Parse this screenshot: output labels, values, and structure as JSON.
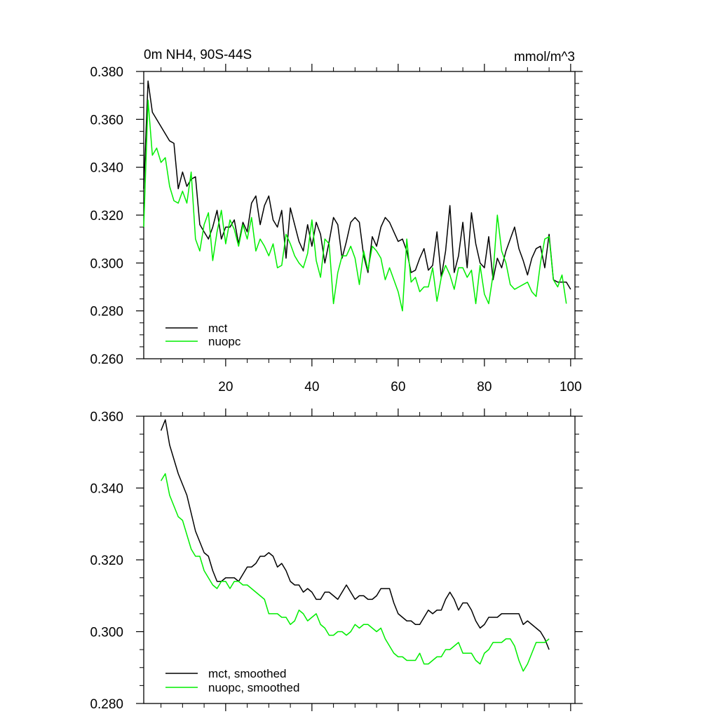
{
  "chart_data": [
    {
      "type": "line",
      "title": "0m NH4, 90S-44S",
      "units_label": "mmol/m^3",
      "xlim": [
        1,
        101
      ],
      "ylim": [
        0.26,
        0.38
      ],
      "xticks": [
        20,
        40,
        60,
        80,
        100
      ],
      "yticks": [
        0.26,
        0.28,
        0.3,
        0.32,
        0.34,
        0.36,
        0.38
      ],
      "yticks_labels": [
        "0.260",
        "0.280",
        "0.300",
        "0.320",
        "0.340",
        "0.360",
        "0.380"
      ],
      "xticks_labels": [
        "20",
        "40",
        "60",
        "80",
        "100"
      ],
      "grid": false,
      "legend": "bottom-left",
      "series": [
        {
          "name": "mct",
          "color": "#000000",
          "x_start": 1,
          "values": [
            0.331,
            0.376,
            0.363,
            0.36,
            0.357,
            0.354,
            0.351,
            0.35,
            0.331,
            0.338,
            0.332,
            0.335,
            0.336,
            0.316,
            0.313,
            0.31,
            0.315,
            0.322,
            0.31,
            0.315,
            0.315,
            0.318,
            0.308,
            0.317,
            0.313,
            0.325,
            0.328,
            0.316,
            0.324,
            0.328,
            0.318,
            0.315,
            0.322,
            0.302,
            0.323,
            0.316,
            0.309,
            0.305,
            0.316,
            0.307,
            0.317,
            0.312,
            0.3,
            0.309,
            0.319,
            0.316,
            0.302,
            0.309,
            0.317,
            0.319,
            0.317,
            0.303,
            0.296,
            0.311,
            0.307,
            0.315,
            0.319,
            0.317,
            0.313,
            0.309,
            0.31,
            0.305,
            0.296,
            0.297,
            0.302,
            0.306,
            0.297,
            0.299,
            0.313,
            0.294,
            0.305,
            0.324,
            0.296,
            0.303,
            0.317,
            0.298,
            0.321,
            0.308,
            0.3,
            0.298,
            0.311,
            0.293,
            0.302,
            0.298,
            0.305,
            0.31,
            0.315,
            0.306,
            0.301,
            0.295,
            0.302,
            0.306,
            0.307,
            0.298,
            0.312,
            0.293,
            0.292,
            0.292,
            0.292,
            0.289
          ]
        },
        {
          "name": "nuopc",
          "color": "#00ee00",
          "x_start": 1,
          "values": [
            0.315,
            0.368,
            0.345,
            0.348,
            0.342,
            0.344,
            0.332,
            0.326,
            0.325,
            0.33,
            0.325,
            0.338,
            0.31,
            0.305,
            0.316,
            0.321,
            0.301,
            0.313,
            0.322,
            0.308,
            0.318,
            0.314,
            0.307,
            0.316,
            0.31,
            0.319,
            0.305,
            0.31,
            0.307,
            0.303,
            0.308,
            0.298,
            0.299,
            0.312,
            0.308,
            0.303,
            0.3,
            0.298,
            0.304,
            0.318,
            0.301,
            0.294,
            0.31,
            0.308,
            0.283,
            0.296,
            0.303,
            0.303,
            0.307,
            0.302,
            0.291,
            0.305,
            0.297,
            0.307,
            0.305,
            0.302,
            0.293,
            0.298,
            0.293,
            0.288,
            0.28,
            0.31,
            0.292,
            0.294,
            0.288,
            0.29,
            0.29,
            0.298,
            0.284,
            0.294,
            0.299,
            0.295,
            0.289,
            0.298,
            0.298,
            0.294,
            0.297,
            0.283,
            0.299,
            0.287,
            0.283,
            0.295,
            0.32,
            0.305,
            0.3,
            0.291,
            0.289,
            0.29,
            0.291,
            0.292,
            0.288,
            0.286,
            0.3,
            0.31,
            0.311,
            0.293,
            0.29,
            0.295,
            0.283
          ]
        }
      ]
    },
    {
      "type": "line",
      "xlim": [
        1,
        101
      ],
      "ylim": [
        0.28,
        0.36
      ],
      "xticks": [
        20,
        40,
        60,
        80,
        100
      ],
      "yticks": [
        0.28,
        0.3,
        0.32,
        0.34,
        0.36
      ],
      "yticks_labels": [
        "0.280",
        "0.300",
        "0.320",
        "0.340",
        "0.360"
      ],
      "grid": false,
      "legend": "bottom-left",
      "series": [
        {
          "name": "mct, smoothed",
          "color": "#000000",
          "x_start": 5,
          "values": [
            0.356,
            0.359,
            0.352,
            0.348,
            0.344,
            0.341,
            0.338,
            0.333,
            0.328,
            0.325,
            0.322,
            0.321,
            0.317,
            0.314,
            0.314,
            0.315,
            0.315,
            0.315,
            0.314,
            0.316,
            0.318,
            0.318,
            0.319,
            0.321,
            0.321,
            0.322,
            0.321,
            0.318,
            0.319,
            0.317,
            0.314,
            0.313,
            0.313,
            0.311,
            0.312,
            0.311,
            0.309,
            0.309,
            0.311,
            0.311,
            0.31,
            0.309,
            0.311,
            0.313,
            0.311,
            0.309,
            0.31,
            0.31,
            0.309,
            0.309,
            0.31,
            0.312,
            0.312,
            0.312,
            0.308,
            0.305,
            0.304,
            0.303,
            0.303,
            0.302,
            0.302,
            0.304,
            0.306,
            0.305,
            0.306,
            0.306,
            0.309,
            0.311,
            0.309,
            0.306,
            0.308,
            0.308,
            0.306,
            0.303,
            0.301,
            0.302,
            0.304,
            0.304,
            0.304,
            0.305,
            0.305,
            0.305,
            0.305,
            0.305,
            0.302,
            0.303,
            0.302,
            0.301,
            0.3,
            0.298,
            0.295
          ]
        },
        {
          "name": "nuopc, smoothed",
          "color": "#00ee00",
          "x_start": 5,
          "values": [
            0.342,
            0.344,
            0.338,
            0.335,
            0.332,
            0.331,
            0.327,
            0.323,
            0.321,
            0.321,
            0.317,
            0.315,
            0.313,
            0.312,
            0.314,
            0.314,
            0.312,
            0.314,
            0.314,
            0.313,
            0.313,
            0.312,
            0.311,
            0.31,
            0.309,
            0.305,
            0.305,
            0.305,
            0.304,
            0.304,
            0.302,
            0.303,
            0.306,
            0.305,
            0.303,
            0.304,
            0.305,
            0.302,
            0.301,
            0.299,
            0.299,
            0.3,
            0.3,
            0.299,
            0.3,
            0.302,
            0.301,
            0.302,
            0.302,
            0.301,
            0.3,
            0.301,
            0.298,
            0.296,
            0.294,
            0.293,
            0.293,
            0.292,
            0.292,
            0.292,
            0.294,
            0.291,
            0.291,
            0.292,
            0.293,
            0.293,
            0.295,
            0.295,
            0.296,
            0.297,
            0.294,
            0.294,
            0.294,
            0.292,
            0.291,
            0.294,
            0.295,
            0.297,
            0.297,
            0.297,
            0.298,
            0.298,
            0.296,
            0.292,
            0.289,
            0.291,
            0.294,
            0.297,
            0.297,
            0.297,
            0.298
          ]
        }
      ]
    }
  ]
}
